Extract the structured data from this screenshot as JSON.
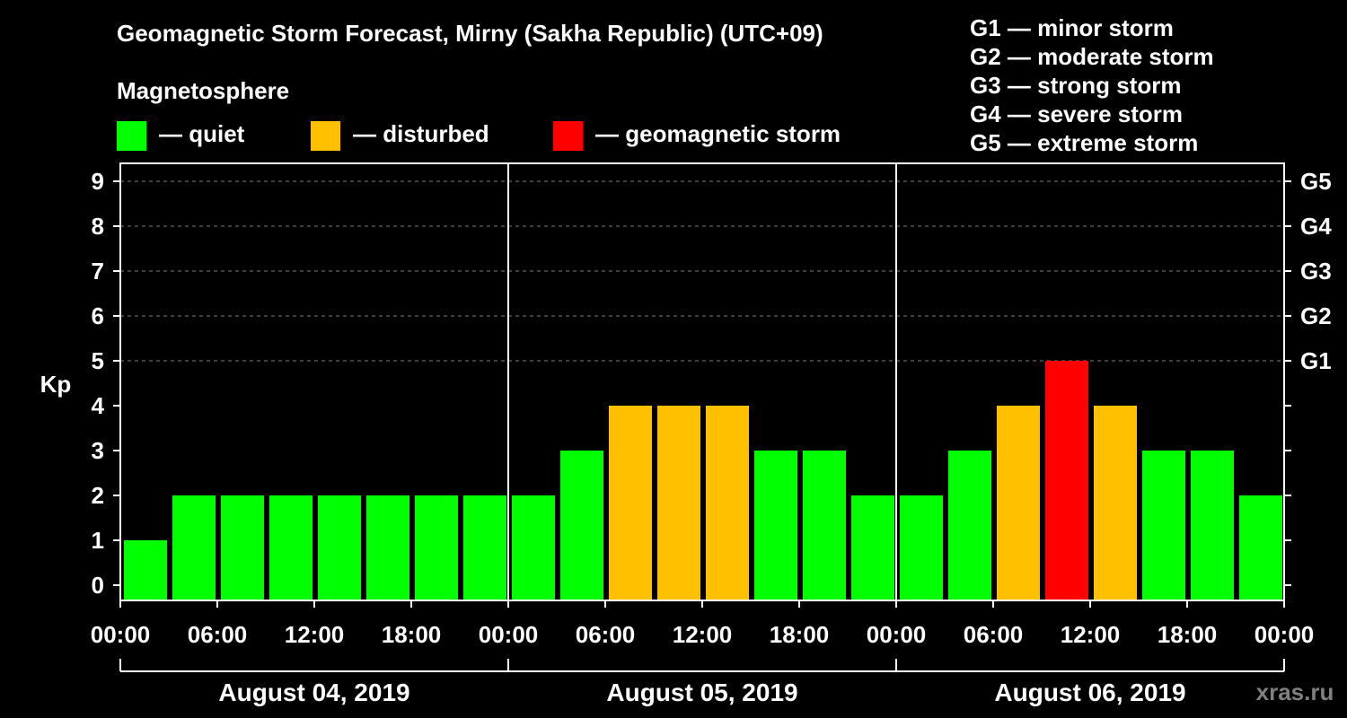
{
  "title": "Geomagnetic Storm Forecast, Mirny (Sakha Republic) (UTC+09)",
  "legend": {
    "heading": "Magnetosphere",
    "items": [
      {
        "label": "— quiet",
        "color": "#00ff00"
      },
      {
        "label": "— disturbed",
        "color": "#ffc000"
      },
      {
        "label": "— geomagnetic storm",
        "color": "#ff0000"
      }
    ]
  },
  "g_scale": [
    {
      "level": "G1",
      "text": "G1 — minor storm"
    },
    {
      "level": "G2",
      "text": "G2 — moderate storm"
    },
    {
      "level": "G3",
      "text": "G3 — strong storm"
    },
    {
      "level": "G4",
      "text": "G4 — severe storm"
    },
    {
      "level": "G5",
      "text": "G5 — extreme storm"
    }
  ],
  "watermark": "xras.ru",
  "colors": {
    "quiet": "#00ff00",
    "disturbed": "#ffc000",
    "storm": "#ff0000",
    "background": "#000000",
    "grid": "#808080"
  },
  "chart_data": {
    "type": "bar",
    "ylabel": "Kp",
    "ylim": [
      0,
      9
    ],
    "yticks": [
      0,
      1,
      2,
      3,
      4,
      5,
      6,
      7,
      8,
      9
    ],
    "right_axis": [
      {
        "kp": 5,
        "label": "G1"
      },
      {
        "kp": 6,
        "label": "G2"
      },
      {
        "kp": 7,
        "label": "G3"
      },
      {
        "kp": 8,
        "label": "G4"
      },
      {
        "kp": 9,
        "label": "G5"
      }
    ],
    "grid": "horizontal dashed",
    "x_tick_labels": [
      "00:00",
      "06:00",
      "12:00",
      "18:00",
      "00:00",
      "06:00",
      "12:00",
      "18:00",
      "00:00",
      "06:00",
      "12:00",
      "18:00",
      "00:00"
    ],
    "days": [
      "August 04, 2019",
      "August 05, 2019",
      "August 06, 2019"
    ],
    "interval_hours": 3,
    "values": [
      1,
      2,
      2,
      2,
      2,
      2,
      2,
      2,
      2,
      3,
      4,
      4,
      4,
      3,
      3,
      2,
      2,
      3,
      4,
      5,
      4,
      3,
      3,
      2
    ],
    "status": [
      "quiet",
      "quiet",
      "quiet",
      "quiet",
      "quiet",
      "quiet",
      "quiet",
      "quiet",
      "quiet",
      "quiet",
      "disturbed",
      "disturbed",
      "disturbed",
      "quiet",
      "quiet",
      "quiet",
      "quiet",
      "quiet",
      "disturbed",
      "storm",
      "disturbed",
      "quiet",
      "quiet",
      "quiet"
    ]
  }
}
